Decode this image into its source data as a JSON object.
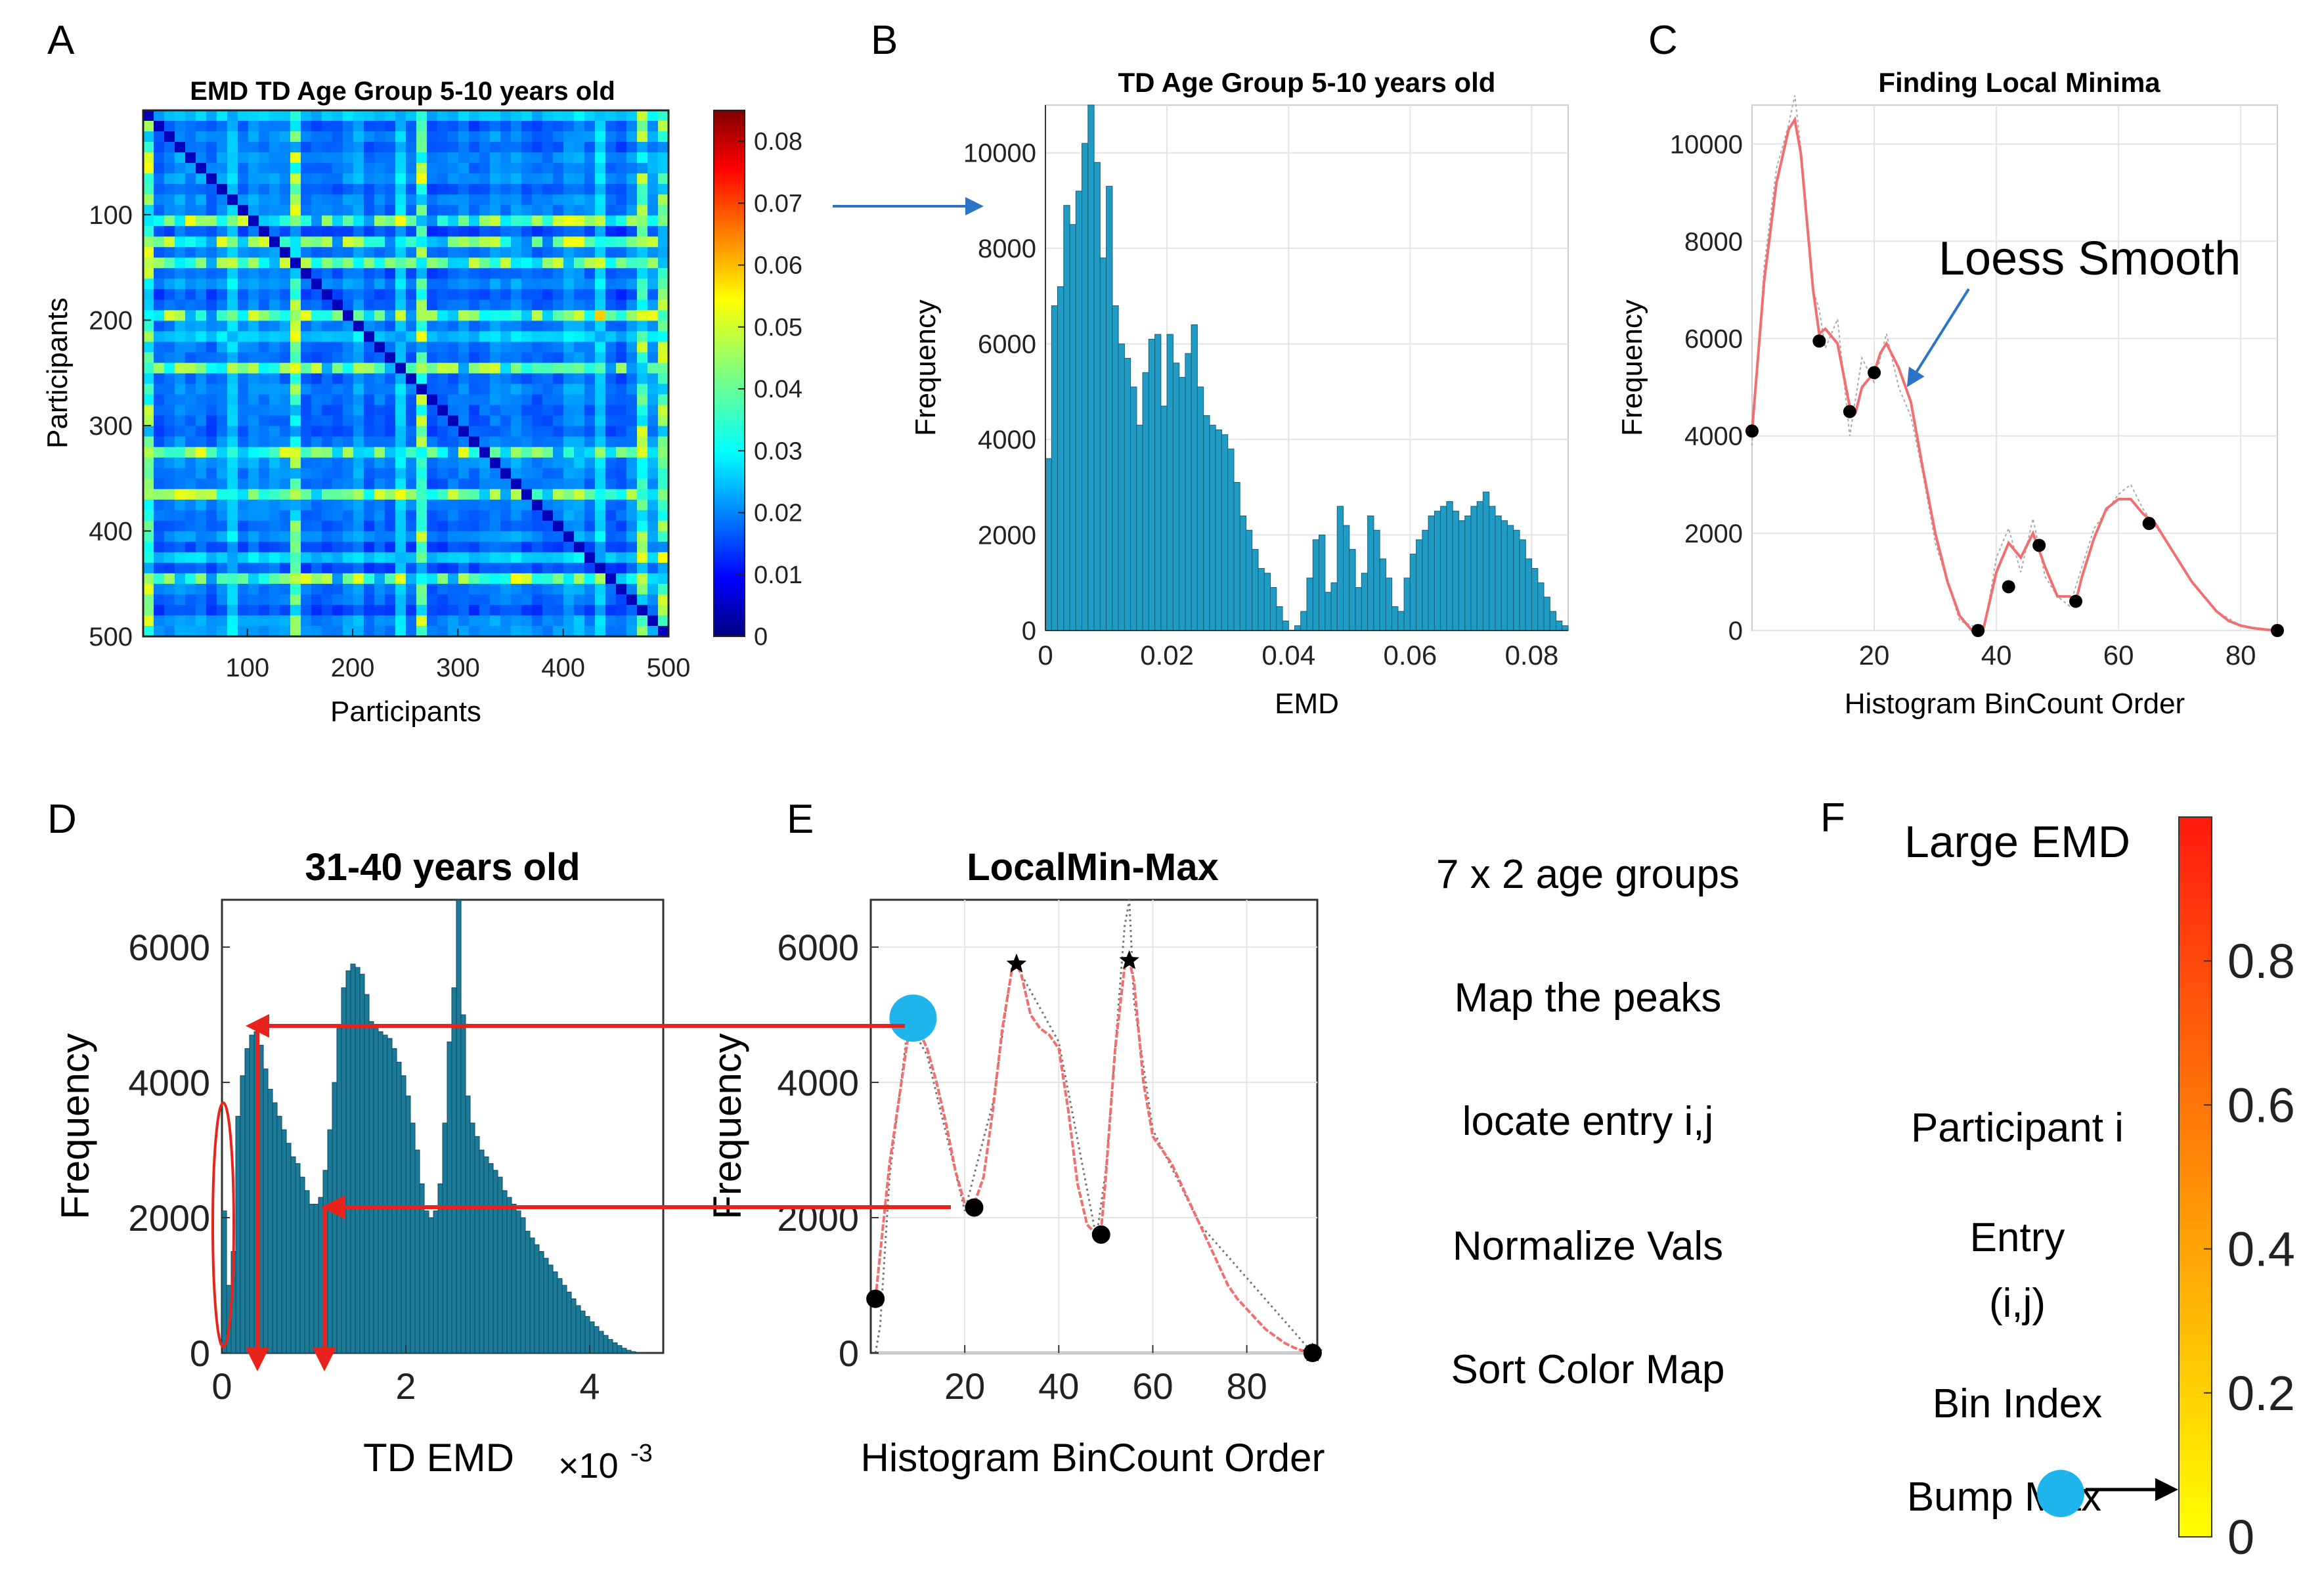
{
  "colors": {
    "bar_fill": "#1f9bc4",
    "bar_edge": "#16607a",
    "bar_fill_d": "#1a7a97",
    "smooth_line": "#f26f6f",
    "raw_line": "#aaaaaa",
    "red_arrow": "#e8231c",
    "blue_arrow": "#2b74c8",
    "cyan_marker": "#1db5ec",
    "axis": "#333333",
    "grid": "#e4e4e4"
  },
  "panels": {
    "A": {
      "letter": "A",
      "title": "EMD TD Age Group 5-10 years old",
      "xlabel": "Participants",
      "ylabel": "Participants",
      "xticks": [
        "100",
        "200",
        "300",
        "400",
        "500"
      ],
      "yticks": [
        "100",
        "200",
        "300",
        "400",
        "500"
      ],
      "cbar_ticks": [
        "0",
        "0.01",
        "0.02",
        "0.03",
        "0.04",
        "0.05",
        "0.06",
        "0.07",
        "0.08"
      ]
    },
    "B": {
      "letter": "B",
      "title": "TD Age Group 5-10 years old",
      "xlabel": "EMD",
      "ylabel": "Frequency"
    },
    "C": {
      "letter": "C",
      "title": "Finding Local Minima",
      "xlabel": "Histogram BinCount Order",
      "ylabel": "Frequency",
      "annotation": "Loess Smooth"
    },
    "D": {
      "letter": "D",
      "title": "31-40 years old",
      "xlabel": "TD EMD",
      "ylabel": "Frequency",
      "exponent_base": "×10",
      "exponent_power": "-3"
    },
    "E": {
      "letter": "E",
      "title": "LocalMin-Max",
      "xlabel": "Histogram BinCount Order",
      "ylabel": "Frequency"
    },
    "F": {
      "letter": "F",
      "title": "Large EMD",
      "labels": [
        "Participant i",
        "Entry",
        "(i,j)",
        "Bin Index",
        "Bump Max"
      ],
      "cbar_ticks": [
        "0",
        "0.2",
        "0.4",
        "0.6",
        "0.8"
      ]
    }
  },
  "steps": [
    "7 x 2 age groups",
    "Map the peaks",
    "locate entry i,j",
    "Normalize Vals",
    "Sort Color Map"
  ],
  "chart_data": [
    {
      "panel": "A",
      "type": "heatmap",
      "title": "EMD TD Age Group 5-10 years old",
      "xlabel": "Participants",
      "ylabel": "Participants",
      "xlim": [
        1,
        500
      ],
      "ylim": [
        1,
        500
      ],
      "colorbar_range": [
        0,
        0.085
      ],
      "colormap": "jet"
    },
    {
      "panel": "B",
      "type": "bar",
      "title": "TD Age Group 5-10 years old",
      "xlabel": "EMD",
      "ylabel": "Frequency",
      "xlim": [
        0,
        0.086
      ],
      "ylim": [
        0,
        11000
      ],
      "xticks": [
        0,
        0.02,
        0.04,
        0.06,
        0.08
      ],
      "yticks": [
        0,
        2000,
        4000,
        6000,
        8000,
        10000
      ],
      "bin_width": 0.001,
      "values": [
        3600,
        6800,
        7200,
        8900,
        8500,
        9200,
        10200,
        11000,
        9800,
        7800,
        9300,
        6800,
        6000,
        5700,
        5100,
        4300,
        5400,
        6100,
        6200,
        4700,
        6200,
        5600,
        5300,
        5800,
        6400,
        5100,
        4500,
        4300,
        4200,
        4100,
        3800,
        3100,
        2400,
        2100,
        1700,
        1300,
        1200,
        900,
        500,
        200,
        0,
        100,
        400,
        1100,
        1900,
        2000,
        800,
        1000,
        2600,
        2200,
        1700,
        900,
        1200,
        2400,
        2100,
        1500,
        1100,
        500,
        400,
        1100,
        1600,
        1900,
        2100,
        2400,
        2500,
        2600,
        2700,
        2500,
        2300,
        2400,
        2600,
        2700,
        2900,
        2600,
        2400,
        2300,
        2200,
        2100,
        1900,
        1500,
        1300,
        1000,
        700,
        400,
        200,
        100
      ]
    },
    {
      "panel": "C",
      "type": "line",
      "title": "Finding Local Minima",
      "xlabel": "Histogram BinCount Order",
      "ylabel": "Frequency",
      "xlim": [
        0,
        86
      ],
      "ylim": [
        0,
        10800
      ],
      "xticks": [
        20,
        40,
        60,
        80
      ],
      "yticks": [
        0,
        2000,
        4000,
        6000,
        8000,
        10000
      ],
      "series": [
        {
          "name": "Loess Smooth",
          "x": [
            0,
            2,
            4,
            6,
            7,
            8,
            10,
            11,
            12,
            14,
            16,
            17,
            18,
            20,
            21,
            22,
            24,
            26,
            28,
            30,
            32,
            34,
            36,
            37,
            38,
            40,
            42,
            44,
            46,
            48,
            50,
            52,
            53,
            54,
            56,
            58,
            60,
            62,
            64,
            66,
            68,
            70,
            72,
            74,
            76,
            78,
            80,
            82,
            84,
            86
          ],
          "y": [
            4100,
            7200,
            9200,
            10300,
            10500,
            9800,
            7000,
            6100,
            6200,
            5900,
            4600,
            4500,
            5000,
            5300,
            5700,
            5900,
            5400,
            4700,
            3300,
            2000,
            1000,
            300,
            0,
            0,
            100,
            1200,
            1800,
            1500,
            2000,
            1300,
            700,
            700,
            600,
            1100,
            1900,
            2500,
            2700,
            2700,
            2400,
            2200,
            1800,
            1400,
            1000,
            700,
            400,
            200,
            100,
            50,
            20,
            0
          ]
        },
        {
          "name": "Raw",
          "x": [
            0,
            2,
            4,
            6,
            7,
            8,
            10,
            11,
            12,
            14,
            16,
            18,
            20,
            22,
            24,
            26,
            28,
            30,
            34,
            38,
            40,
            42,
            44,
            46,
            48,
            50,
            52,
            56,
            60,
            62,
            64,
            68,
            72,
            76,
            80,
            86
          ],
          "y": [
            3800,
            7500,
            9500,
            10400,
            11000,
            9900,
            7000,
            6600,
            5800,
            6400,
            4000,
            5600,
            5100,
            6100,
            5000,
            4400,
            3200,
            1800,
            200,
            0,
            1500,
            2100,
            1200,
            2300,
            1100,
            700,
            500,
            2100,
            2800,
            3000,
            2500,
            1800,
            1000,
            400,
            100,
            0
          ]
        }
      ],
      "local_minima": {
        "x": [
          0,
          11,
          16,
          20,
          37,
          42,
          47,
          53,
          65,
          86
        ],
        "y": [
          4100,
          5950,
          4500,
          5300,
          0,
          900,
          1750,
          600,
          2200,
          0
        ]
      }
    },
    {
      "panel": "D",
      "type": "bar",
      "title": "31-40 years old",
      "xlabel": "TD EMD",
      "ylabel": "Frequency",
      "x_multiplier": "1e-3",
      "xlim": [
        0,
        4.8
      ],
      "ylim": [
        0,
        6700
      ],
      "xticks": [
        0,
        2,
        4
      ],
      "yticks": [
        0,
        2000,
        4000,
        6000
      ],
      "bin_width": 0.05,
      "values": [
        2100,
        1000,
        1500,
        3500,
        4100,
        4500,
        4700,
        4750,
        4550,
        4200,
        3900,
        3700,
        3500,
        3300,
        3100,
        2900,
        2800,
        2600,
        2400,
        2200,
        2200,
        2300,
        2700,
        3300,
        4000,
        4800,
        5400,
        5650,
        5750,
        5700,
        5600,
        5300,
        4900,
        4800,
        4750,
        4700,
        4650,
        4500,
        4300,
        4100,
        3800,
        3400,
        3000,
        2500,
        2100,
        2000,
        2100,
        2500,
        3400,
        4600,
        5400,
        6700,
        5000,
        3800,
        3400,
        3200,
        3000,
        2900,
        2800,
        2700,
        2600,
        2400,
        2300,
        2200,
        2100,
        2000,
        1800,
        1700,
        1600,
        1500,
        1400,
        1300,
        1200,
        1100,
        1000,
        900,
        800,
        700,
        620,
        540,
        460,
        390,
        320,
        260,
        200,
        150,
        110,
        70,
        40,
        20,
        10,
        5,
        0,
        0,
        0,
        0
      ]
    },
    {
      "panel": "E",
      "type": "line",
      "title": "LocalMin-Max",
      "xlabel": "Histogram BinCount Order",
      "ylabel": "Frequency",
      "xlim": [
        0,
        95
      ],
      "ylim": [
        0,
        6700
      ],
      "xticks": [
        20,
        40,
        60,
        80
      ],
      "yticks": [
        0,
        2000,
        4000,
        6000
      ],
      "series": [
        {
          "name": "Smooth",
          "x": [
            1,
            4,
            8,
            10,
            12,
            14,
            16,
            18,
            20,
            22,
            24,
            26,
            28,
            30,
            31,
            32,
            34,
            36,
            38,
            40,
            42,
            44,
            46,
            48,
            49,
            50,
            52,
            54,
            55,
            56,
            58,
            60,
            62,
            64,
            66,
            68,
            70,
            72,
            74,
            76,
            78,
            80,
            82,
            84,
            86,
            88,
            90,
            92,
            94
          ],
          "y": [
            800,
            2800,
            4700,
            4800,
            4500,
            4000,
            3400,
            2700,
            2200,
            2200,
            2600,
            3600,
            4800,
            5650,
            5750,
            5600,
            5000,
            4800,
            4700,
            4500,
            3600,
            2500,
            1900,
            1750,
            1800,
            2600,
            4500,
            5700,
            5800,
            5500,
            4000,
            3200,
            3000,
            2800,
            2500,
            2200,
            1900,
            1600,
            1300,
            1000,
            800,
            650,
            500,
            350,
            250,
            150,
            80,
            30,
            0
          ]
        },
        {
          "name": "Raw",
          "x": [
            1,
            2,
            4,
            8,
            12,
            20,
            26,
            30,
            31,
            32,
            40,
            48,
            50,
            54,
            55,
            56,
            60,
            70,
            94
          ],
          "y": [
            0,
            400,
            2600,
            4900,
            4400,
            2100,
            3700,
            5700,
            5800,
            5600,
            4600,
            1700,
            2700,
            6300,
            6700,
            5200,
            3300,
            1900,
            0
          ]
        }
      ],
      "local_min": {
        "x": [
          1,
          22,
          49,
          94
        ],
        "y": [
          800,
          2150,
          1750,
          0
        ]
      },
      "local_max": {
        "x": [
          31,
          55,
          94
        ],
        "y": [
          5750,
          5800,
          0
        ]
      },
      "highlight_peak": {
        "x": 9,
        "y": 4950
      }
    },
    {
      "panel": "F",
      "type": "heatmap",
      "title": "Large EMD",
      "colorbar_range": [
        0,
        1
      ],
      "colormap": "autumn-yellow-to-red",
      "cbar_ticks": [
        0,
        0.2,
        0.4,
        0.6,
        0.8
      ]
    }
  ]
}
